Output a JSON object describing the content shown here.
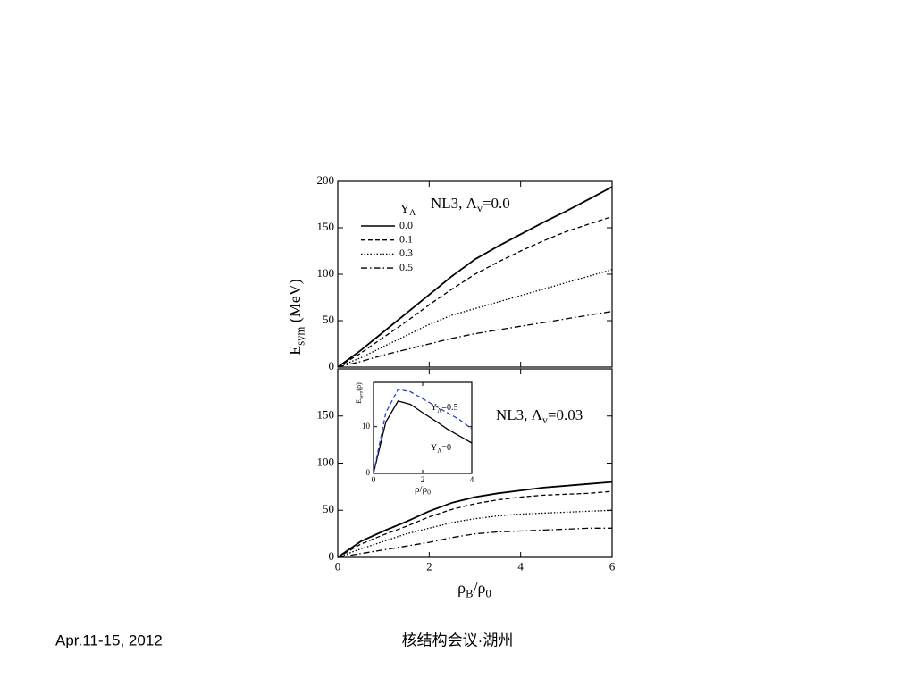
{
  "footer": {
    "date": "Apr.11-15, 2012",
    "venue": "核结构会议·湖州"
  },
  "chart_data": [
    {
      "type": "line",
      "annotation": [
        "NL3, Λ",
        "v",
        "=0.0"
      ],
      "ylabel": [
        "E",
        "sym",
        " (MeV)"
      ],
      "legend_title": [
        "Y",
        "Λ"
      ],
      "x": [
        0,
        0.5,
        1,
        1.5,
        2,
        2.5,
        3,
        3.5,
        4,
        4.5,
        5,
        5.5,
        6
      ],
      "xlim": [
        0,
        6
      ],
      "xticks": [
        0,
        2,
        4,
        6
      ],
      "ylim": [
        0,
        200
      ],
      "yticks": [
        0,
        50,
        100,
        150,
        200
      ],
      "series": [
        {
          "name": "0.0",
          "color": "#000000",
          "style": "solid",
          "values": [
            0,
            18,
            38,
            58,
            78,
            98,
            116,
            130,
            143,
            156,
            168,
            181,
            194
          ]
        },
        {
          "name": "0.1",
          "color": "#000000",
          "style": "dashed",
          "values": [
            0,
            15,
            32,
            49,
            67,
            84,
            100,
            113,
            125,
            136,
            146,
            154,
            162
          ]
        },
        {
          "name": "0.3",
          "color": "#000000",
          "style": "dotted",
          "values": [
            0,
            10,
            22,
            34,
            46,
            56,
            63,
            70,
            77,
            84,
            91,
            98,
            105
          ]
        },
        {
          "name": "0.5",
          "color": "#000000",
          "style": "dashdot",
          "values": [
            0,
            6,
            13,
            19,
            25,
            31,
            36,
            40,
            44,
            48,
            52,
            56,
            60
          ]
        }
      ]
    },
    {
      "type": "line",
      "annotation": [
        "NL3, Λ",
        "v",
        "=0.03"
      ],
      "xlabel": [
        "ρ",
        "B",
        "/ρ",
        "0"
      ],
      "x": [
        0,
        0.5,
        1,
        1.5,
        2,
        2.5,
        3,
        3.5,
        4,
        4.5,
        5,
        5.5,
        6
      ],
      "xlim": [
        0,
        6
      ],
      "xticks": [
        0,
        2,
        4,
        6
      ],
      "ylim": [
        0,
        200
      ],
      "yticks": [
        0,
        50,
        100,
        150
      ],
      "series": [
        {
          "color": "#000000",
          "style": "solid",
          "values": [
            0,
            17,
            28,
            38,
            49,
            58,
            64,
            68,
            71,
            74,
            76,
            78,
            80
          ]
        },
        {
          "color": "#000000",
          "style": "dashed",
          "values": [
            0,
            14,
            24,
            33,
            43,
            51,
            57,
            61,
            64,
            66,
            67,
            68,
            70
          ]
        },
        {
          "color": "#000000",
          "style": "dotted",
          "values": [
            0,
            9,
            17,
            25,
            31,
            37,
            41,
            44,
            46,
            47,
            48,
            49,
            50
          ]
        },
        {
          "color": "#000000",
          "style": "dashdot",
          "values": [
            0,
            4,
            8,
            12,
            16,
            21,
            25,
            27,
            28,
            29,
            30,
            31,
            31
          ]
        }
      ]
    },
    {
      "type": "line",
      "ylabel": [
        "E",
        "sym",
        "(ρ)"
      ],
      "xlabel": [
        "ρ/ρ",
        "0"
      ],
      "x": [
        0,
        0.5,
        1,
        1.5,
        2,
        2.5,
        3,
        3.5,
        4
      ],
      "xlim": [
        0,
        4
      ],
      "xticks": [
        0,
        2,
        4
      ],
      "ylim": [
        0,
        19.5
      ],
      "yticks": [
        0,
        10
      ],
      "series": [
        {
          "label": [
            "Y",
            "Λ",
            "=0"
          ],
          "color": "#000000",
          "style": "solid",
          "values": [
            0,
            11,
            15.5,
            14.8,
            13,
            11.3,
            9.5,
            8,
            6.5
          ]
        },
        {
          "label": [
            "Y",
            "Λ",
            "=0.5"
          ],
          "color": "#2a3fcf",
          "style": "dashed",
          "values": [
            0,
            13,
            18,
            17.5,
            16,
            14.5,
            13,
            11.5,
            9.5
          ]
        }
      ]
    }
  ]
}
